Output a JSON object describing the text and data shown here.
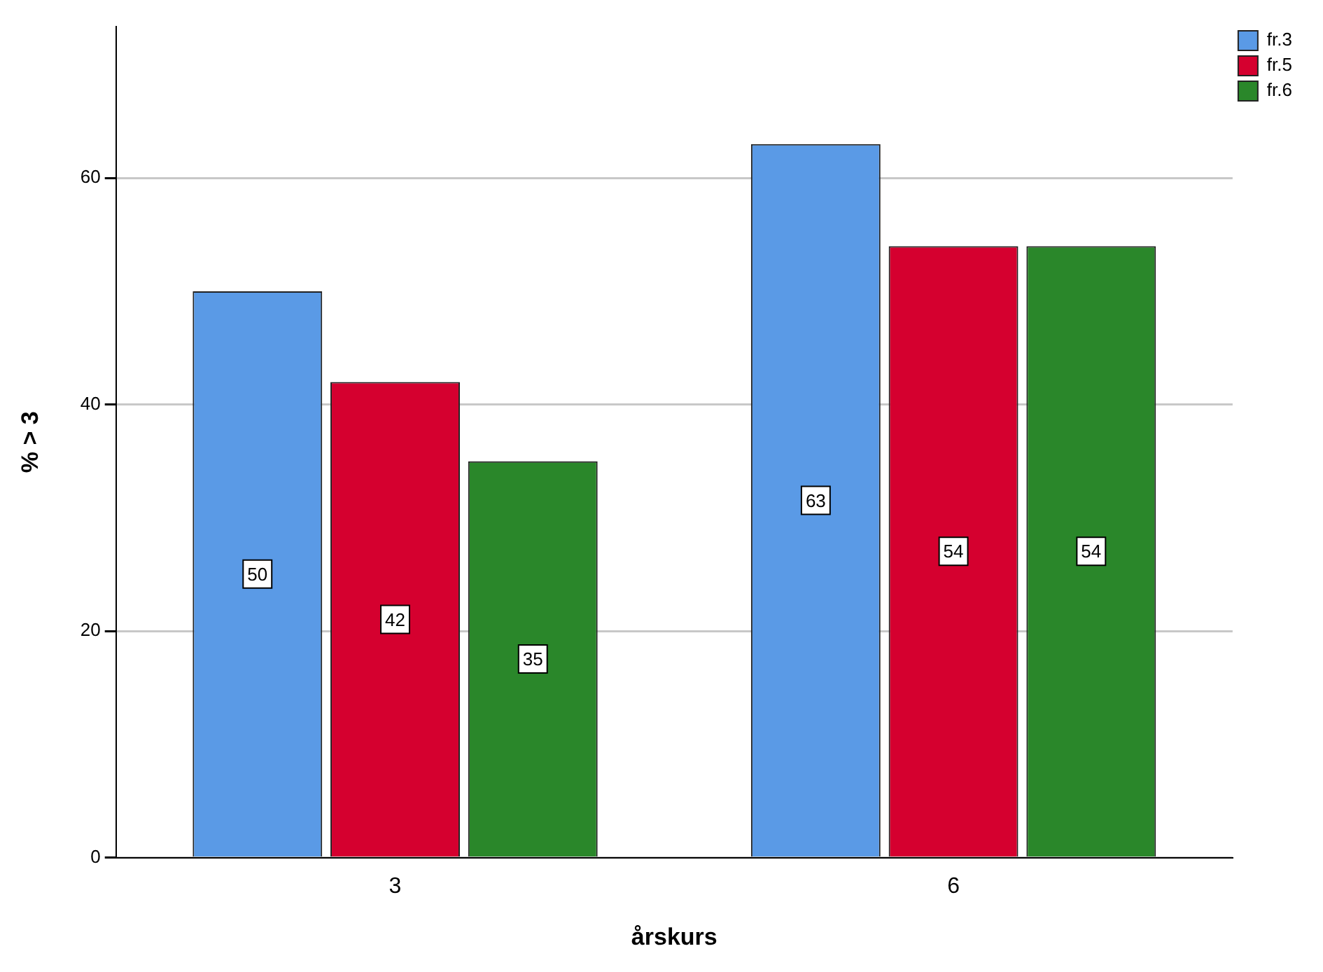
{
  "chart_data": {
    "type": "bar",
    "xlabel": "årskurs",
    "ylabel": "% > 3",
    "categories": [
      "3",
      "6"
    ],
    "series": [
      {
        "name": "fr.3",
        "color": "#5a9ae6",
        "values": [
          50,
          63
        ]
      },
      {
        "name": "fr.5",
        "color": "#d5002f",
        "values": [
          42,
          54
        ]
      },
      {
        "name": "fr.6",
        "color": "#2a872a",
        "values": [
          35,
          54
        ]
      }
    ],
    "ylim": [
      0,
      73.4
    ],
    "yticks": [
      0,
      20,
      40,
      60
    ],
    "grid": "y",
    "legend": "top right",
    "data_labels": true
  }
}
